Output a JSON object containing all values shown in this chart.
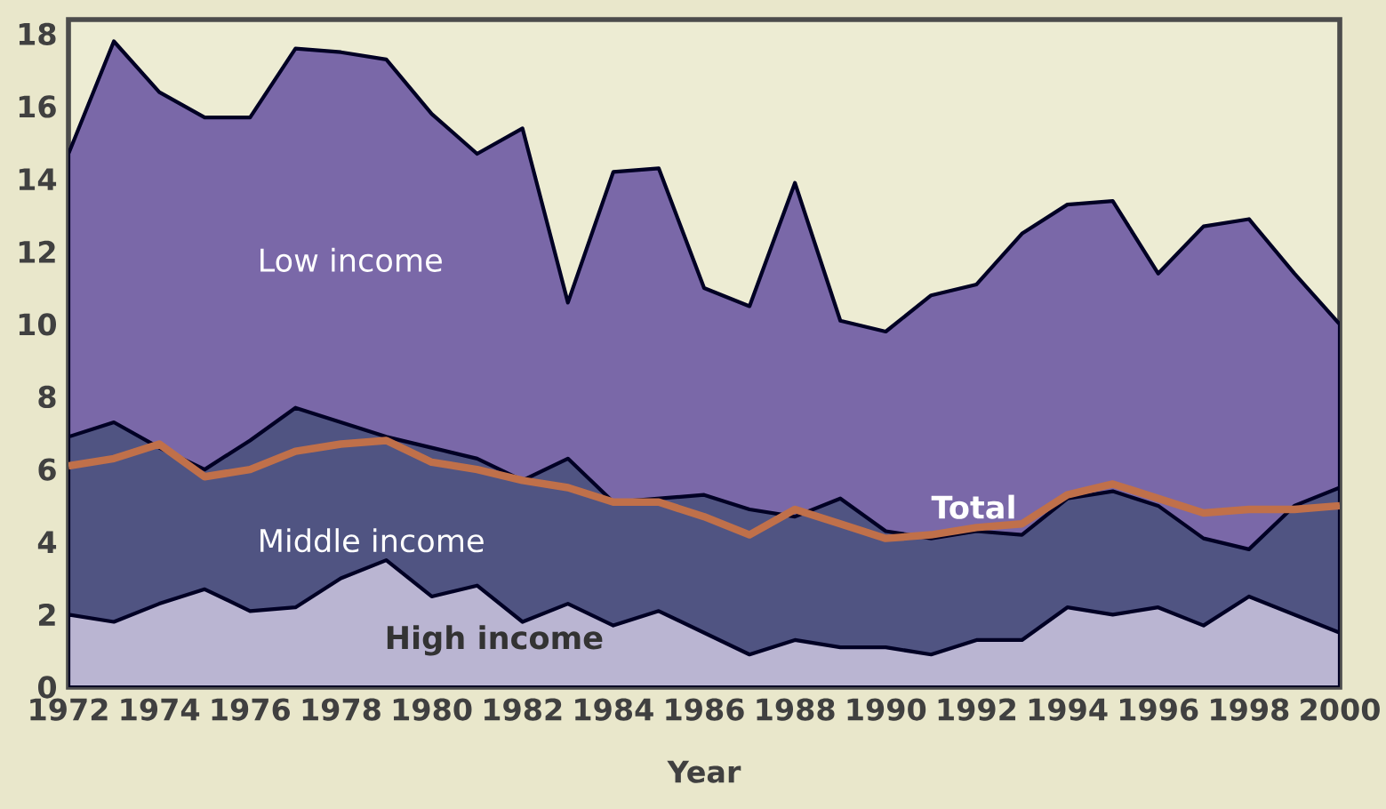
{
  "chart_data": {
    "type": "area",
    "xlabel": "Year",
    "x": [
      1972,
      1973,
      1974,
      1975,
      1976,
      1977,
      1978,
      1979,
      1980,
      1981,
      1982,
      1983,
      1984,
      1985,
      1986,
      1987,
      1988,
      1989,
      1990,
      1991,
      1992,
      1993,
      1994,
      1995,
      1996,
      1997,
      1998,
      1999,
      2000
    ],
    "series": [
      {
        "name": "Low income",
        "color": "#7a68a8",
        "values": [
          14.7,
          17.8,
          16.4,
          15.7,
          15.7,
          17.6,
          17.5,
          17.3,
          15.8,
          14.7,
          15.4,
          10.6,
          14.2,
          14.3,
          11.0,
          10.5,
          13.9,
          10.1,
          9.8,
          10.8,
          11.1,
          12.5,
          13.3,
          13.4,
          11.4,
          12.7,
          12.9,
          11.4,
          10.0
        ]
      },
      {
        "name": "Middle income",
        "color": "#505482",
        "values": [
          6.9,
          7.3,
          6.6,
          6.0,
          6.8,
          7.7,
          7.3,
          6.9,
          6.6,
          6.3,
          5.7,
          6.3,
          5.1,
          5.2,
          5.3,
          4.9,
          4.7,
          5.2,
          4.3,
          4.1,
          4.3,
          4.2,
          5.2,
          5.4,
          5.0,
          4.1,
          3.8,
          5.0,
          5.5
        ]
      },
      {
        "name": "High income",
        "color": "#bab5d2",
        "values": [
          2.0,
          1.8,
          2.3,
          2.7,
          2.1,
          2.2,
          3.0,
          3.5,
          2.5,
          2.8,
          1.8,
          2.3,
          1.7,
          2.1,
          1.5,
          0.9,
          1.3,
          1.1,
          1.1,
          0.9,
          1.3,
          1.3,
          2.2,
          2.0,
          2.2,
          1.7,
          2.5,
          2.0,
          1.5
        ]
      },
      {
        "name": "Total",
        "type": "line",
        "color": "#c0704a",
        "values": [
          6.1,
          6.3,
          6.7,
          5.8,
          6.0,
          6.5,
          6.7,
          6.8,
          6.2,
          6.0,
          5.7,
          5.5,
          5.1,
          5.1,
          4.7,
          4.2,
          4.9,
          4.5,
          4.1,
          4.2,
          4.4,
          4.5,
          5.3,
          5.6,
          5.2,
          4.8,
          4.9,
          4.9,
          5.0
        ]
      }
    ],
    "xlim": [
      1972,
      2000
    ],
    "ylim": [
      0,
      18.4
    ],
    "xticks": [
      1972,
      1974,
      1976,
      1978,
      1980,
      1982,
      1984,
      1986,
      1988,
      1990,
      1992,
      1994,
      1996,
      1998,
      2000
    ],
    "yticks": [
      0,
      2,
      4,
      6,
      8,
      10,
      12,
      14,
      16,
      18
    ],
    "grid": false,
    "legend": false
  }
}
